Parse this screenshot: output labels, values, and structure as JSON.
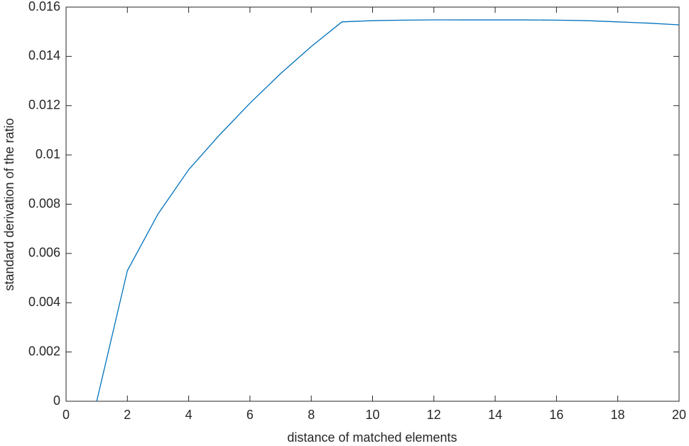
{
  "chart_data": {
    "type": "line",
    "x_label": "distance of matched elements",
    "y_label": "standard derivation of the ratio",
    "x": [
      1,
      2,
      3,
      4,
      5,
      6,
      7,
      8,
      9,
      10,
      11,
      12,
      13,
      14,
      15,
      16,
      17,
      18,
      19,
      20
    ],
    "series": [
      {
        "color": "#0072bd",
        "values": [
          0,
          0.0053,
          0.0076,
          0.0094,
          0.0108,
          0.0121,
          0.0133,
          0.0144,
          0.0154,
          0.01545,
          0.01547,
          0.01548,
          0.01548,
          0.01548,
          0.01548,
          0.01547,
          0.01545,
          0.0154,
          0.01535,
          0.01528
        ]
      }
    ],
    "xlim": [
      0,
      20
    ],
    "xticks": [
      0,
      2,
      4,
      6,
      8,
      10,
      12,
      14,
      16,
      18,
      20
    ],
    "ylim": [
      0,
      0.016
    ],
    "yticks": [
      0,
      0.002,
      0.004,
      0.006,
      0.008,
      0.01,
      0.012,
      0.014,
      0.016
    ],
    "grid": false
  }
}
